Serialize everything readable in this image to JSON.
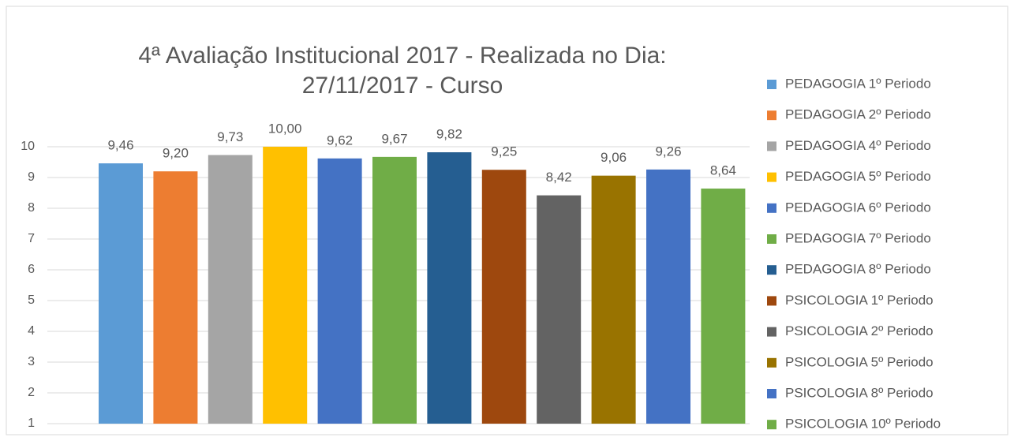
{
  "chart_data": {
    "type": "bar",
    "title": "4ª Avaliação Institucional 2017 - Realizada no Dia: 27/11/2017 - Curso",
    "ylim": [
      1,
      10
    ],
    "yticks": [
      1,
      2,
      3,
      4,
      5,
      6,
      7,
      8,
      9,
      10
    ],
    "grid": true,
    "legend": "right",
    "series": [
      {
        "name": "PEDAGOGIA 1º Periodo",
        "color": "#5B9BD5",
        "values": [
          9.46
        ],
        "value_labels": [
          "9,46"
        ]
      },
      {
        "name": "PEDAGOGIA 2º Periodo",
        "color": "#ED7D31",
        "values": [
          9.2
        ],
        "value_labels": [
          "9,20"
        ]
      },
      {
        "name": "PEDAGOGIA 4º Periodo",
        "color": "#A5A5A5",
        "values": [
          9.73
        ],
        "value_labels": [
          "9,73"
        ]
      },
      {
        "name": "PEDAGOGIA 5º Periodo",
        "color": "#FFC000",
        "values": [
          10.0
        ],
        "value_labels": [
          "10,00"
        ]
      },
      {
        "name": "PEDAGOGIA 6º Periodo",
        "color": "#4472C4",
        "values": [
          9.62
        ],
        "value_labels": [
          "9,62"
        ]
      },
      {
        "name": "PEDAGOGIA 7º Periodo",
        "color": "#70AD47",
        "values": [
          9.67
        ],
        "value_labels": [
          "9,67"
        ]
      },
      {
        "name": "PEDAGOGIA 8º Periodo",
        "color": "#255E91",
        "values": [
          9.82
        ],
        "value_labels": [
          "9,82"
        ]
      },
      {
        "name": "PSICOLOGIA 1º Periodo",
        "color": "#9E480E",
        "values": [
          9.25
        ],
        "value_labels": [
          "9,25"
        ]
      },
      {
        "name": "PSICOLOGIA 2º Periodo",
        "color": "#636363",
        "values": [
          8.42
        ],
        "value_labels": [
          "8,42"
        ]
      },
      {
        "name": "PSICOLOGIA 5º Periodo",
        "color": "#997300",
        "values": [
          9.06
        ],
        "value_labels": [
          "9,06"
        ]
      },
      {
        "name": "PSICOLOGIA 8º Periodo",
        "color": "#4472C4",
        "values": [
          9.26
        ],
        "value_labels": [
          "9,26"
        ]
      },
      {
        "name": "PSICOLOGIA 10º Periodo",
        "color": "#70AD47",
        "values": [
          8.64
        ],
        "value_labels": [
          "8,64"
        ]
      }
    ]
  }
}
